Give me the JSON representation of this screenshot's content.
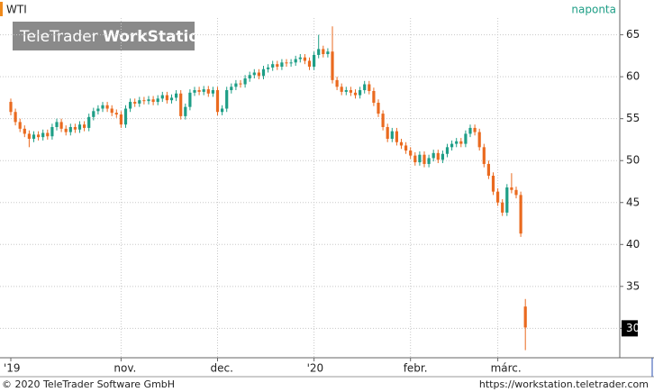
{
  "chart_data": {
    "type": "candlestick",
    "title": "WTI",
    "period": "naponta",
    "watermark": {
      "brand": "TeleTrader",
      "product": "WorkStation"
    },
    "categories": [
      "'19",
      null,
      null,
      null,
      null,
      null,
      null,
      null,
      null,
      null,
      null,
      null,
      null,
      null,
      null,
      null,
      null,
      null,
      null,
      null,
      null,
      null,
      null,
      null,
      "nov.",
      null,
      null,
      null,
      null,
      null,
      null,
      null,
      null,
      null,
      null,
      null,
      null,
      null,
      null,
      null,
      null,
      null,
      null,
      null,
      null,
      "dec.",
      null,
      null,
      null,
      null,
      null,
      null,
      null,
      null,
      null,
      null,
      null,
      null,
      null,
      null,
      null,
      null,
      null,
      null,
      null,
      null,
      "'20",
      null,
      null,
      null,
      null,
      null,
      null,
      null,
      null,
      null,
      null,
      null,
      null,
      null,
      null,
      null,
      null,
      null,
      null,
      null,
      null,
      "febr.",
      null,
      null,
      null,
      null,
      null,
      null,
      null,
      null,
      null,
      null,
      null,
      null,
      null,
      null,
      null,
      null,
      null,
      null,
      "márc.",
      null,
      null,
      null,
      null,
      null,
      null
    ],
    "series": [
      {
        "up_color": "#1e9e86",
        "down_color": "#ea6a1f",
        "open": [
          57.0,
          55.8,
          54.6,
          53.8,
          53.2,
          52.6,
          53.1,
          52.8,
          53.3,
          52.9,
          54.0,
          54.6,
          53.8,
          53.4,
          54.0,
          53.7,
          54.3,
          53.9,
          55.2,
          55.9,
          56.2,
          56.6,
          56.2,
          55.7,
          55.5,
          54.3,
          56.2,
          57.0,
          56.8,
          57.2,
          57.1,
          57.3,
          57.0,
          57.4,
          57.8,
          57.2,
          57.5,
          58.0,
          55.3,
          56.4,
          58.1,
          58.4,
          58.2,
          58.5,
          58.0,
          58.4,
          55.8,
          56.2,
          58.4,
          58.8,
          59.2,
          59.1,
          59.8,
          60.2,
          60.5,
          60.1,
          60.9,
          61.1,
          61.5,
          61.2,
          61.7,
          61.6,
          61.7,
          62.1,
          62.3,
          61.9,
          61.2,
          62.6,
          63.3,
          62.7,
          63.0,
          59.6,
          58.8,
          58.2,
          58.4,
          58.1,
          57.8,
          58.4,
          59.1,
          58.3,
          56.9,
          55.6,
          54.0,
          52.6,
          53.5,
          52.2,
          51.8,
          51.2,
          50.6,
          49.8,
          50.7,
          49.6,
          50.3,
          50.9,
          50.1,
          50.8,
          51.6,
          52.0,
          52.3,
          52.0,
          53.2,
          53.9,
          53.4,
          51.6,
          49.6,
          48.2,
          46.3,
          45.0,
          43.8,
          46.8,
          46.5,
          45.9,
          32.6
        ],
        "high": [
          57.4,
          56.2,
          55.0,
          54.2,
          53.6,
          53.5,
          53.5,
          53.7,
          53.7,
          54.4,
          55.0,
          55.0,
          54.2,
          54.4,
          54.4,
          54.7,
          54.7,
          55.6,
          56.3,
          56.6,
          57.0,
          57.0,
          56.6,
          56.1,
          55.9,
          56.6,
          57.4,
          57.4,
          57.6,
          57.6,
          57.7,
          57.7,
          57.8,
          58.2,
          58.2,
          57.9,
          58.4,
          58.4,
          56.8,
          58.5,
          58.8,
          58.8,
          58.9,
          58.9,
          58.8,
          58.8,
          56.6,
          58.8,
          59.2,
          59.6,
          59.6,
          60.2,
          60.6,
          60.9,
          60.9,
          61.3,
          61.5,
          61.9,
          61.9,
          62.1,
          62.1,
          62.1,
          62.5,
          62.7,
          62.7,
          62.3,
          63.0,
          65.0,
          63.7,
          63.4,
          66.0,
          60.0,
          59.2,
          58.8,
          58.8,
          58.5,
          58.8,
          59.5,
          59.5,
          58.7,
          57.3,
          56.0,
          54.4,
          53.9,
          53.9,
          52.6,
          52.2,
          51.6,
          51.0,
          51.1,
          51.1,
          50.7,
          51.3,
          51.3,
          51.2,
          52.0,
          52.4,
          52.7,
          52.7,
          53.6,
          54.3,
          54.3,
          53.8,
          52.0,
          50.0,
          48.6,
          46.7,
          45.4,
          47.2,
          48.5,
          46.9,
          46.3,
          33.5
        ],
        "low": [
          55.4,
          54.2,
          53.4,
          52.8,
          51.6,
          52.2,
          52.4,
          52.4,
          52.5,
          52.5,
          53.6,
          53.4,
          53.0,
          53.0,
          53.3,
          53.3,
          53.5,
          53.5,
          54.8,
          55.5,
          55.8,
          55.8,
          55.3,
          55.1,
          53.9,
          53.9,
          55.8,
          56.4,
          56.4,
          56.7,
          56.7,
          56.6,
          56.6,
          57.0,
          56.8,
          56.8,
          57.1,
          54.9,
          54.9,
          56.0,
          57.7,
          57.8,
          57.8,
          57.6,
          57.6,
          55.4,
          55.4,
          55.8,
          58.0,
          58.4,
          58.7,
          58.7,
          59.4,
          59.8,
          59.7,
          59.7,
          60.5,
          60.7,
          60.8,
          60.8,
          61.2,
          61.2,
          61.3,
          61.7,
          61.5,
          60.8,
          60.8,
          62.2,
          62.3,
          62.3,
          59.2,
          58.4,
          57.8,
          57.8,
          57.7,
          57.4,
          57.4,
          58.0,
          57.9,
          56.5,
          55.2,
          53.6,
          52.2,
          52.2,
          51.8,
          51.4,
          50.8,
          50.2,
          49.4,
          49.4,
          49.2,
          49.2,
          49.9,
          49.7,
          49.7,
          50.4,
          51.2,
          51.6,
          51.6,
          51.6,
          52.8,
          53.0,
          51.2,
          49.2,
          47.8,
          45.9,
          44.6,
          43.4,
          43.4,
          46.1,
          45.5,
          40.9,
          27.4
        ],
        "close": [
          55.8,
          54.6,
          53.8,
          53.2,
          52.6,
          53.1,
          52.8,
          53.3,
          52.9,
          54.0,
          54.6,
          53.8,
          53.4,
          54.0,
          53.7,
          54.3,
          53.9,
          55.2,
          55.9,
          56.2,
          56.6,
          56.2,
          55.7,
          55.5,
          54.3,
          56.2,
          57.0,
          56.8,
          57.2,
          57.1,
          57.3,
          57.0,
          57.4,
          57.8,
          57.2,
          57.5,
          58.0,
          55.3,
          56.4,
          58.1,
          58.4,
          58.2,
          58.5,
          58.0,
          58.4,
          55.8,
          56.2,
          58.4,
          58.8,
          59.2,
          59.1,
          59.8,
          60.2,
          60.5,
          60.1,
          60.9,
          61.1,
          61.5,
          61.2,
          61.7,
          61.6,
          61.7,
          62.1,
          62.3,
          61.9,
          61.2,
          62.6,
          63.3,
          62.7,
          63.0,
          59.6,
          58.8,
          58.2,
          58.4,
          58.1,
          57.8,
          58.4,
          59.1,
          58.3,
          56.9,
          55.6,
          54.0,
          52.6,
          53.5,
          52.2,
          51.8,
          51.2,
          50.6,
          49.8,
          50.7,
          49.6,
          50.3,
          50.9,
          50.1,
          50.8,
          51.6,
          52.0,
          52.3,
          52.0,
          53.2,
          53.9,
          53.4,
          51.6,
          49.6,
          48.2,
          46.3,
          45.0,
          43.8,
          46.8,
          46.5,
          45.9,
          41.3,
          30.1
        ]
      }
    ],
    "ylim": [
      26.6,
      67.0
    ],
    "yticks": [
      30,
      35,
      40,
      45,
      50,
      55,
      60,
      65
    ],
    "highlight_ytick": 30,
    "grid": true,
    "footer": {
      "copyright": "© 2020 TeleTrader Software GmbH",
      "url": "https://workstation.teletrader.com"
    }
  }
}
